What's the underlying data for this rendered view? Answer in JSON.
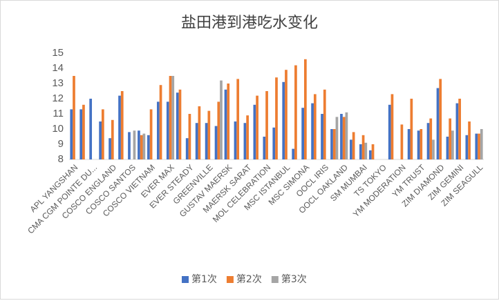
{
  "chart_data": {
    "type": "bar",
    "title": "盐田港到港吃水变化",
    "categories": [
      "APL YANGSHAN",
      null,
      "CMA CGM POINTE DU...",
      null,
      "COSCO ENGLAND",
      null,
      "COSCO SANTOS",
      null,
      "COSCO VIETNAM",
      null,
      "EVER MAX",
      null,
      "EVER STEADY",
      null,
      "GREENVILLE",
      null,
      "GUSTAV MAERSK",
      null,
      "MAERSK SARAT",
      null,
      "MOL CELEBRATION",
      null,
      "MSC ISTANBUL",
      null,
      "MSC SIMONA",
      null,
      "OOCL IRIS",
      null,
      "OOCL OAKLAND",
      null,
      "SM MUMBAI",
      null,
      "TS TOKYO",
      null,
      "YM MODERATION",
      null,
      "YM TRUST",
      null,
      "ZIM DIAMOND",
      null,
      "ZIM GEMINI",
      null,
      "ZIM SEAGULL"
    ],
    "series": [
      {
        "name": "第1次",
        "color": "#4472c4",
        "values": [
          11.3,
          11.3,
          12.0,
          10.5,
          9.4,
          12.2,
          9.8,
          9.9,
          9.6,
          11.8,
          11.8,
          12.4,
          9.4,
          10.4,
          10.4,
          10.2,
          12.6,
          10.5,
          10.4,
          11.6,
          9.5,
          10.1,
          13.1,
          8.7,
          11.4,
          11.7,
          11.0,
          10.0,
          11.0,
          9.3,
          9.0,
          8.6,
          null,
          11.6,
          null,
          10.0,
          9.9,
          10.4,
          12.7,
          9.5,
          11.7,
          9.6,
          9.7
        ]
      },
      {
        "name": "第2次",
        "color": "#ed7d31",
        "values": [
          13.5,
          11.6,
          null,
          11.3,
          10.6,
          12.5,
          null,
          9.6,
          11.3,
          12.9,
          13.5,
          12.6,
          11.0,
          11.5,
          11.2,
          11.8,
          13.0,
          13.3,
          10.9,
          12.2,
          12.5,
          13.4,
          13.9,
          14.2,
          14.6,
          12.3,
          12.6,
          10.0,
          10.8,
          9.8,
          9.6,
          9.0,
          null,
          12.3,
          10.3,
          12.0,
          10.0,
          10.7,
          13.3,
          10.7,
          12.0,
          10.5,
          9.7
        ]
      },
      {
        "name": "第3次",
        "color": "#a5a5a5",
        "values": [
          null,
          null,
          null,
          null,
          null,
          null,
          9.9,
          9.7,
          null,
          null,
          13.5,
          null,
          null,
          null,
          null,
          13.2,
          null,
          null,
          null,
          null,
          null,
          null,
          null,
          null,
          null,
          null,
          null,
          10.8,
          11.1,
          null,
          9.1,
          null,
          null,
          null,
          null,
          null,
          null,
          9.3,
          null,
          9.9,
          null,
          null,
          10.0
        ]
      }
    ],
    "ylim": [
      8,
      15
    ],
    "yticks": [
      8,
      9,
      10,
      11,
      12,
      13,
      14,
      15
    ],
    "legend": "bottom"
  }
}
